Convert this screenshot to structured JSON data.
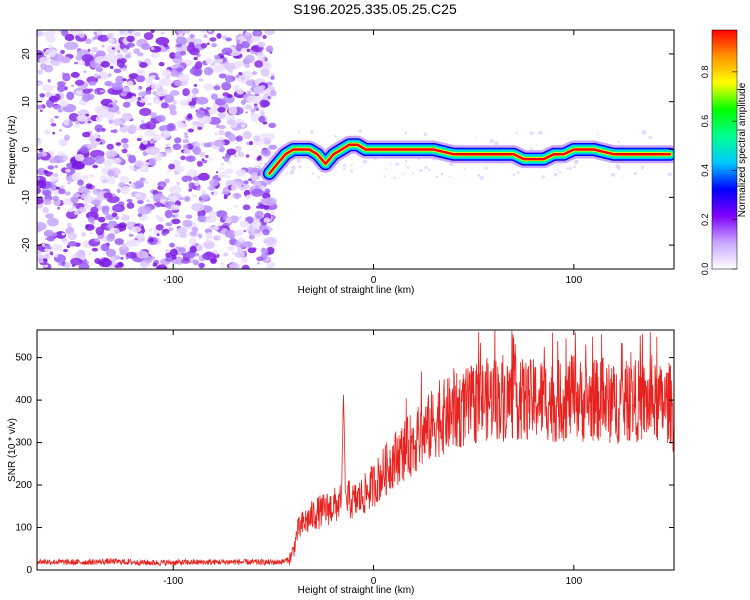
{
  "title": "S196.2025.335.05.25.C25",
  "chart_data": [
    {
      "type": "heatmap",
      "title": "S196.2025.335.05.25.C25",
      "xlabel": "Height of straight line (km)",
      "ylabel": "Frequency (Hz)",
      "xlim": [
        -168,
        150
      ],
      "ylim": [
        -25,
        25
      ],
      "xticks": [
        "-100",
        "0",
        "100"
      ],
      "xtick_values": [
        -100,
        0,
        100
      ],
      "yticks": [
        "-20",
        "-10",
        "0",
        "10",
        "20"
      ],
      "ytick_values": [
        -20,
        -10,
        0,
        10,
        20
      ],
      "noise_region_x": [
        -168,
        -50
      ],
      "ridge": {
        "x": [
          -52,
          -48,
          -44,
          -40,
          -36,
          -32,
          -28,
          -24,
          -20,
          -16,
          -12,
          -8,
          -4,
          0,
          10,
          20,
          30,
          40,
          50,
          60,
          70,
          75,
          80,
          85,
          90,
          95,
          100,
          110,
          120,
          130,
          140,
          148
        ],
        "freq": [
          -5,
          -3,
          -1,
          0,
          0,
          0,
          -1,
          -3,
          -1,
          0,
          1,
          1,
          0,
          0,
          0,
          0,
          0,
          -1,
          -1,
          -1,
          -1,
          -2,
          -2,
          -2,
          -1,
          -1,
          0,
          0,
          -1,
          -1,
          -1,
          -1
        ]
      },
      "colorbar": {
        "label": "Normalized spectral amplitude",
        "range": [
          0,
          0.97
        ],
        "ticks": [
          "0.0",
          "0.2",
          "0.4",
          "0.6",
          "0.8"
        ],
        "tick_values": [
          0.0,
          0.2,
          0.4,
          0.6,
          0.8
        ],
        "colors": [
          "#ffffff",
          "#c8a6ff",
          "#8000ff",
          "#0000ff",
          "#00c8ff",
          "#00ff90",
          "#00ff00",
          "#ffff00",
          "#ff9600",
          "#ff0000"
        ]
      }
    },
    {
      "type": "line",
      "xlabel": "Height of straight line (km)",
      "ylabel": "SNR (10 * v/v)",
      "xlim": [
        -168,
        150
      ],
      "ylim": [
        0,
        565
      ],
      "xticks": [
        "-100",
        "0",
        "100"
      ],
      "xtick_values": [
        -100,
        0,
        100
      ],
      "yticks": [
        "0",
        "100",
        "200",
        "300",
        "400",
        "500"
      ],
      "ytick_values": [
        0,
        100,
        200,
        300,
        400,
        500
      ],
      "series": [
        {
          "name": "SNR",
          "color": "#e8221e",
          "x": [
            -168,
            -150,
            -130,
            -110,
            -90,
            -70,
            -50,
            -45,
            -42,
            -40,
            -38,
            -35,
            -32,
            -30,
            -25,
            -20,
            -16,
            -15,
            -14,
            -10,
            -5,
            0,
            5,
            10,
            15,
            20,
            25,
            30,
            35,
            40,
            45,
            50,
            55,
            60,
            65,
            70,
            75,
            80,
            85,
            90,
            95,
            100,
            105,
            110,
            115,
            120,
            125,
            130,
            135,
            140,
            145,
            148,
            150
          ],
          "y": [
            20,
            18,
            20,
            17,
            18,
            19,
            18,
            20,
            25,
            45,
            90,
            110,
            120,
            130,
            140,
            150,
            160,
            420,
            170,
            160,
            175,
            200,
            230,
            260,
            280,
            300,
            320,
            345,
            360,
            370,
            380,
            390,
            400,
            405,
            400,
            405,
            400,
            400,
            405,
            395,
            400,
            410,
            395,
            400,
            395,
            390,
            395,
            400,
            395,
            390,
            390,
            395,
            360
          ]
        }
      ]
    }
  ]
}
